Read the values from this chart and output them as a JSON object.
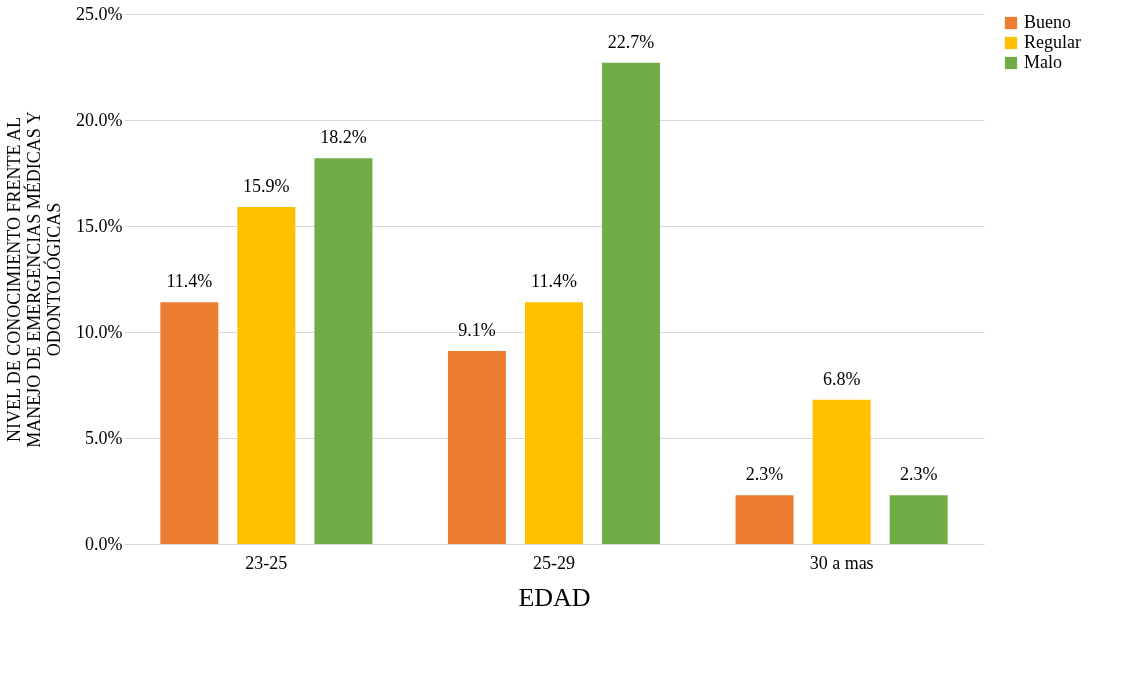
{
  "chart_data": {
    "type": "bar",
    "xlabel": "EDAD",
    "ylabel": "NIVEL DE CONOCIMIENTO FRENTE AL MANEJO DE EMERGENCIAS MÉDICAS Y ODONTOLÓGICAS",
    "categories": [
      "23-25",
      "25-29",
      "30 a mas"
    ],
    "series": [
      {
        "name": "Bueno",
        "color": "#ed7d31",
        "values": [
          11.4,
          9.1,
          2.3
        ],
        "value_labels": [
          "11.4%",
          "9.1%",
          "2.3%"
        ]
      },
      {
        "name": "Regular",
        "color": "#ffc000",
        "values": [
          15.9,
          11.4,
          6.8
        ],
        "value_labels": [
          "15.9%",
          "11.4%",
          "6.8%"
        ]
      },
      {
        "name": "Malo",
        "color": "#70ad47",
        "values": [
          18.2,
          22.7,
          2.3
        ],
        "value_labels": [
          "18.2%",
          "22.7%",
          "2.3%"
        ]
      }
    ],
    "ylim": [
      0,
      25
    ],
    "yticks": [
      {
        "value": 0,
        "label": "0.0%"
      },
      {
        "value": 5,
        "label": "5.0%"
      },
      {
        "value": 10,
        "label": "10.0%"
      },
      {
        "value": 15,
        "label": "15.0%"
      },
      {
        "value": 20,
        "label": "20.0%"
      },
      {
        "value": 25,
        "label": "25.0%"
      }
    ],
    "grid": "y",
    "legend": "right"
  }
}
